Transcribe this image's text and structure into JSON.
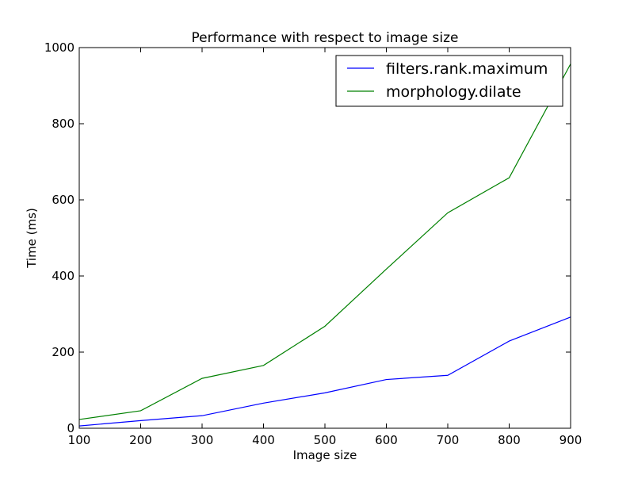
{
  "chart_data": {
    "type": "line",
    "title": "Performance with respect to image size",
    "xlabel": "Image size",
    "ylabel": "Time (ms)",
    "xlim": [
      100,
      900
    ],
    "ylim": [
      0,
      1000
    ],
    "x_ticks": [
      100,
      200,
      300,
      400,
      500,
      600,
      700,
      800,
      900
    ],
    "y_ticks": [
      0,
      200,
      400,
      600,
      800,
      1000
    ],
    "grid": false,
    "legend_position": "top-right",
    "x": [
      100,
      200,
      300,
      400,
      500,
      600,
      700,
      800,
      900
    ],
    "series": [
      {
        "name": "filters.rank.maximum",
        "color": "#0000ff",
        "values": [
          6,
          20,
          33,
          66,
          93,
          128,
          139,
          229,
          292
        ]
      },
      {
        "name": "morphology.dilate",
        "color": "#008000",
        "values": [
          23,
          46,
          131,
          165,
          268,
          418,
          566,
          658,
          957
        ]
      }
    ]
  }
}
